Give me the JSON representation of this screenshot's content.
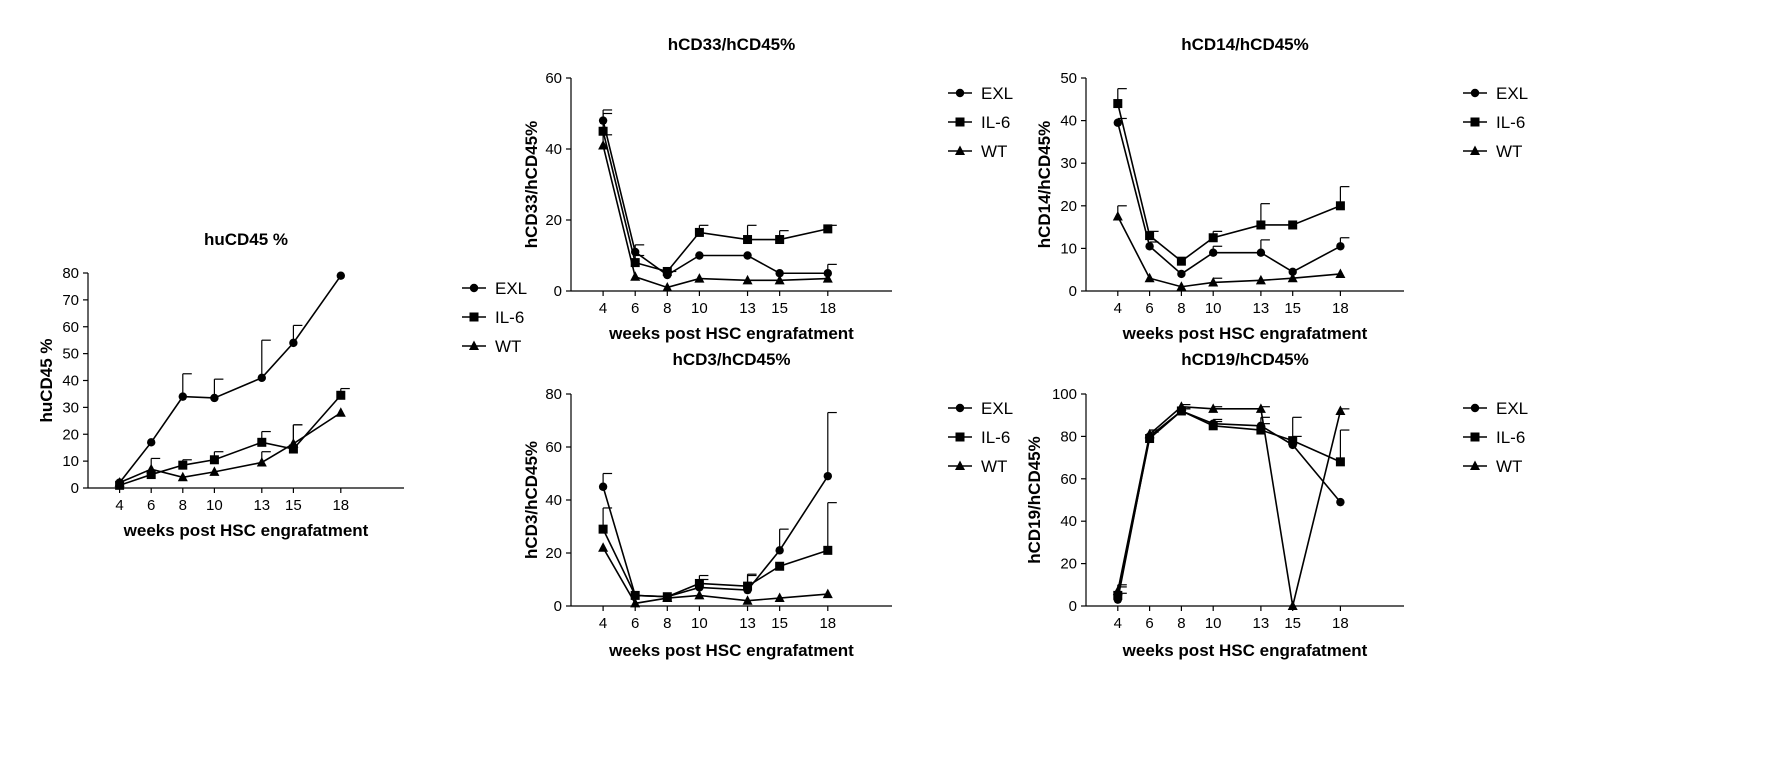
{
  "figure": {
    "colors": {
      "axis": "#000000",
      "series": "#000000",
      "background": "#ffffff"
    }
  },
  "chart_data": [
    {
      "id": "hucd45",
      "type": "line",
      "title": "huCD45 %",
      "xlabel": "weeks post HSC engrafatment",
      "ylabel": "huCD45 %",
      "x": [
        4,
        6,
        8,
        10,
        13,
        15,
        18
      ],
      "x_tick_labels": [
        "4",
        "6",
        "8",
        "10",
        "13",
        "15",
        "18"
      ],
      "xlim": [
        2,
        22
      ],
      "ylim": [
        0,
        80
      ],
      "y_ticks": [
        0,
        10,
        20,
        30,
        40,
        50,
        60,
        70,
        80
      ],
      "series": [
        {
          "name": "EXL",
          "marker": "circle",
          "values": [
            2,
            17,
            34,
            33.5,
            41,
            54,
            79
          ],
          "error_up": [
            0,
            0,
            8.5,
            7,
            14,
            6.5,
            0
          ]
        },
        {
          "name": "IL-6",
          "marker": "square",
          "values": [
            1,
            5,
            8.5,
            10.5,
            17,
            14.5,
            34.5
          ],
          "error_up": [
            0,
            0,
            2,
            3,
            4,
            9,
            2.5
          ]
        },
        {
          "name": "WT",
          "marker": "triangle",
          "values": [
            2,
            7,
            4,
            6,
            9.5,
            16.5,
            28
          ],
          "error_up": [
            0,
            4,
            0,
            0,
            4,
            7,
            0
          ]
        }
      ]
    },
    {
      "id": "hcd33",
      "type": "line",
      "title": "hCD33/hCD45%",
      "xlabel": "weeks post HSC engrafatment",
      "ylabel": "hCD33/hCD45%",
      "x": [
        4,
        6,
        8,
        10,
        13,
        15,
        18
      ],
      "x_tick_labels": [
        "4",
        "6",
        "8",
        "10",
        "13",
        "15",
        "18"
      ],
      "xlim": [
        2,
        22
      ],
      "ylim": [
        0,
        60
      ],
      "y_ticks": [
        0,
        20,
        40,
        60
      ],
      "series": [
        {
          "name": "EXL",
          "marker": "circle",
          "values": [
            48,
            11,
            4.5,
            10,
            10,
            5,
            5
          ],
          "error_up": [
            3,
            2,
            1,
            0,
            0,
            0,
            2.5
          ]
        },
        {
          "name": "IL-6",
          "marker": "square",
          "values": [
            45,
            8,
            5.5,
            16.5,
            14.5,
            14.5,
            17.5
          ],
          "error_up": [
            5,
            2,
            0,
            2,
            4,
            2.5,
            1
          ]
        },
        {
          "name": "WT",
          "marker": "triangle",
          "values": [
            41,
            4,
            1,
            3.5,
            3,
            3,
            3.5
          ],
          "error_up": [
            3,
            0,
            0,
            0,
            0,
            0,
            0
          ]
        }
      ]
    },
    {
      "id": "hcd14",
      "type": "line",
      "title": "hCD14/hCD45%",
      "xlabel": "weeks post HSC engrafatment",
      "ylabel": "hCD14/hCD45%",
      "x": [
        4,
        6,
        8,
        10,
        13,
        15,
        18
      ],
      "x_tick_labels": [
        "4",
        "6",
        "8",
        "10",
        "13",
        "15",
        "18"
      ],
      "xlim": [
        2,
        22
      ],
      "ylim": [
        0,
        50
      ],
      "y_ticks": [
        0,
        10,
        20,
        30,
        40,
        50
      ],
      "series": [
        {
          "name": "EXL",
          "marker": "circle",
          "values": [
            39.5,
            10.5,
            4,
            9,
            9,
            4.5,
            10.5
          ],
          "error_up": [
            1,
            1,
            0,
            1.5,
            3,
            0,
            2
          ]
        },
        {
          "name": "IL-6",
          "marker": "square",
          "values": [
            44,
            13,
            7,
            12.5,
            15.5,
            15.5,
            20
          ],
          "error_up": [
            3.5,
            1,
            0,
            1.5,
            5,
            0,
            4.5
          ]
        },
        {
          "name": "WT",
          "marker": "triangle",
          "values": [
            17.5,
            3,
            1,
            2,
            2.5,
            3,
            4
          ],
          "error_up": [
            2.5,
            0,
            0,
            1,
            0,
            0,
            0
          ]
        }
      ]
    },
    {
      "id": "hcd3",
      "type": "line",
      "title": "hCD3/hCD45%",
      "xlabel": "weeks post HSC engrafatment",
      "ylabel": "hCD3/hCD45%",
      "x": [
        4,
        6,
        8,
        10,
        13,
        15,
        18
      ],
      "x_tick_labels": [
        "4",
        "6",
        "8",
        "10",
        "13",
        "15",
        "18"
      ],
      "xlim": [
        2,
        22
      ],
      "ylim": [
        0,
        80
      ],
      "y_ticks": [
        0,
        20,
        40,
        60,
        80
      ],
      "series": [
        {
          "name": "EXL",
          "marker": "circle",
          "values": [
            45,
            4,
            3.5,
            7,
            6,
            21,
            49
          ],
          "error_up": [
            5,
            0,
            0,
            3,
            6,
            8,
            24
          ]
        },
        {
          "name": "IL-6",
          "marker": "square",
          "values": [
            29,
            4,
            3.5,
            8.5,
            7.5,
            15,
            21
          ],
          "error_up": [
            8,
            0,
            0,
            3,
            4,
            0,
            18
          ]
        },
        {
          "name": "WT",
          "marker": "triangle",
          "values": [
            22,
            1,
            3,
            4,
            2,
            3,
            4.5
          ],
          "error_up": [
            0,
            0,
            0,
            0,
            0,
            0,
            0
          ]
        }
      ]
    },
    {
      "id": "hcd19",
      "type": "line",
      "title": "hCD19/hCD45%",
      "xlabel": "weeks post HSC engrafatment",
      "ylabel": "hCD19/hCD45%",
      "x": [
        4,
        6,
        8,
        10,
        13,
        15,
        18
      ],
      "x_tick_labels": [
        "4",
        "6",
        "8",
        "10",
        "13",
        "15",
        "18"
      ],
      "xlim": [
        2,
        22
      ],
      "ylim": [
        0,
        100
      ],
      "y_ticks": [
        0,
        20,
        40,
        60,
        80,
        100
      ],
      "series": [
        {
          "name": "EXL",
          "marker": "circle",
          "values": [
            3,
            80,
            92,
            86,
            85,
            76,
            49
          ],
          "error_up": [
            3,
            3,
            1,
            2,
            4,
            4,
            0
          ]
        },
        {
          "name": "IL-6",
          "marker": "square",
          "values": [
            5,
            79,
            92,
            85,
            83,
            78,
            68
          ],
          "error_up": [
            4,
            3,
            1,
            2,
            3,
            11,
            15
          ]
        },
        {
          "name": "WT",
          "marker": "triangle",
          "values": [
            7,
            81,
            94,
            93,
            93,
            0,
            92
          ],
          "error_up": [
            3,
            2,
            1,
            1,
            1,
            0,
            1
          ]
        }
      ]
    }
  ]
}
